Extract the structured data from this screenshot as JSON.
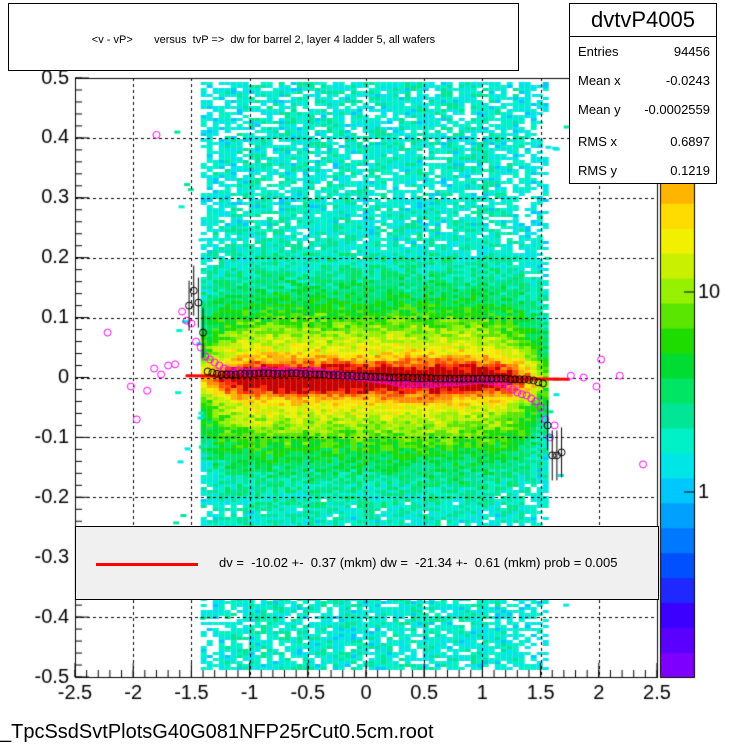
{
  "title": "<v - vP>       versus  tvP =>  dw for barrel 2, layer 4 ladder 5, all wafers",
  "stats": {
    "name": "dvtvP4005",
    "rows": [
      {
        "label": "Entries",
        "value": "94456"
      },
      {
        "label": "Mean x",
        "value": "-0.0243"
      },
      {
        "label": "Mean y",
        "value": "-0.0002559"
      },
      {
        "label": "RMS x",
        "value": "0.6897"
      },
      {
        "label": "RMS y",
        "value": "0.1219"
      }
    ]
  },
  "fit_legend": "dv =  -10.02 +-  0.37 (mkm) dw =  -21.34 +-  0.61 (mkm) prob = 0.005",
  "footer": "_TpcSsdSvtPlotsG40G081NFP25rCut0.5cm.root",
  "colors": {
    "fit_line": "#ff0000",
    "profile_black": "#000000",
    "profile_magenta": "#ff00ff"
  },
  "chart_data": {
    "type": "heatmap",
    "title": "<v - vP>       versus  tvP =>  dw for barrel 2, layer 4 ladder 5, all wafers",
    "xlim": [
      -2.5,
      2.5
    ],
    "ylim": [
      -0.5,
      0.5
    ],
    "x_ticks": [
      "-2.5",
      "-2",
      "-1.5",
      "-1",
      "-0.5",
      "0",
      "0.5",
      "1",
      "1.5",
      "2",
      "2.5"
    ],
    "y_ticks": [
      "-0.5",
      "-0.4",
      "-0.3",
      "-0.2",
      "-0.1",
      "0",
      "0.1",
      "0.2",
      "0.3",
      "0.4",
      "0.5"
    ],
    "z_scale": "log",
    "z_ticks": [
      "1",
      "10"
    ],
    "grid": true,
    "fit_line": {
      "x": [
        -1.55,
        1.75
      ],
      "y": [
        0.003,
        -0.003
      ]
    },
    "profile_black": {
      "x": [
        -1.52,
        -1.48,
        -1.44,
        -1.4,
        -1.36,
        -1.32,
        -1.28,
        -1.24,
        -1.2,
        -1.16,
        -1.12,
        -1.08,
        -1.04,
        -1.0,
        -0.96,
        -0.92,
        -0.88,
        -0.84,
        -0.8,
        -0.76,
        -0.72,
        -0.68,
        -0.64,
        -0.6,
        -0.56,
        -0.52,
        -0.48,
        -0.44,
        -0.4,
        -0.36,
        -0.32,
        -0.28,
        -0.24,
        -0.2,
        -0.16,
        -0.12,
        -0.08,
        -0.04,
        0.0,
        0.04,
        0.08,
        0.12,
        0.16,
        0.2,
        0.24,
        0.28,
        0.32,
        0.36,
        0.4,
        0.44,
        0.48,
        0.52,
        0.56,
        0.6,
        0.64,
        0.68,
        0.72,
        0.76,
        0.8,
        0.84,
        0.88,
        0.92,
        0.96,
        1.0,
        1.04,
        1.08,
        1.12,
        1.16,
        1.2,
        1.24,
        1.28,
        1.32,
        1.36,
        1.4,
        1.44,
        1.48,
        1.52,
        1.56,
        1.6,
        1.64,
        1.68
      ],
      "y": [
        0.12,
        0.145,
        0.125,
        0.075,
        0.01,
        0.008,
        0.006,
        0.005,
        0.005,
        0.005,
        0.005,
        0.006,
        0.006,
        0.006,
        0.006,
        0.007,
        0.007,
        0.007,
        0.006,
        0.006,
        0.006,
        0.006,
        0.007,
        0.007,
        0.006,
        0.006,
        0.005,
        0.005,
        0.005,
        0.005,
        0.004,
        0.004,
        0.004,
        0.003,
        0.003,
        0.003,
        0.002,
        0.002,
        0.002,
        0.001,
        0.001,
        0.001,
        0.001,
        0.0,
        0.0,
        0.0,
        0.0,
        0.0,
        -0.001,
        -0.001,
        -0.001,
        -0.001,
        -0.001,
        -0.002,
        -0.002,
        -0.002,
        -0.002,
        -0.002,
        -0.002,
        -0.002,
        -0.002,
        -0.002,
        -0.002,
        -0.002,
        -0.002,
        -0.002,
        -0.002,
        -0.002,
        -0.002,
        -0.003,
        -0.003,
        -0.003,
        -0.003,
        -0.004,
        -0.005,
        -0.008,
        -0.01,
        -0.08,
        -0.13,
        -0.13,
        -0.125
      ]
    },
    "profile_magenta": {
      "x": [
        -2.22,
        -2.02,
        -1.97,
        -1.88,
        -1.82,
        -1.76,
        -1.7,
        -1.64,
        -1.58,
        -1.54,
        -1.5,
        -1.46,
        -1.42,
        -1.38,
        -1.34,
        -1.3,
        -1.26,
        -1.22,
        -1.18,
        -1.14,
        -1.1,
        -1.06,
        -1.02,
        -0.98,
        -0.94,
        -0.9,
        -0.86,
        -0.82,
        -0.78,
        -0.74,
        -0.7,
        -0.66,
        -0.62,
        -0.58,
        -0.54,
        -0.5,
        -0.46,
        -0.42,
        -0.38,
        -0.34,
        -0.3,
        -0.26,
        -0.22,
        -0.18,
        -0.14,
        -0.1,
        -0.06,
        -0.02,
        0.02,
        0.06,
        0.1,
        0.14,
        0.18,
        0.22,
        0.26,
        0.3,
        0.34,
        0.38,
        0.42,
        0.46,
        0.5,
        0.54,
        0.58,
        0.62,
        0.66,
        0.7,
        0.74,
        0.78,
        0.82,
        0.86,
        0.9,
        0.94,
        0.98,
        1.02,
        1.06,
        1.1,
        1.14,
        1.18,
        1.22,
        1.26,
        1.3,
        1.34,
        1.38,
        1.42,
        1.46,
        1.5,
        1.54,
        1.58,
        1.62,
        1.76,
        1.87,
        1.98,
        2.02,
        2.18,
        2.38,
        -1.8
      ],
      "y": [
        0.075,
        -0.015,
        -0.07,
        -0.022,
        0.015,
        0.005,
        0.02,
        0.022,
        0.11,
        0.095,
        0.09,
        0.06,
        0.05,
        0.035,
        0.03,
        0.025,
        0.02,
        0.015,
        0.012,
        0.01,
        0.012,
        0.01,
        0.008,
        0.009,
        0.01,
        0.012,
        0.011,
        0.01,
        0.009,
        0.01,
        0.012,
        0.011,
        0.01,
        0.009,
        0.008,
        0.01,
        0.011,
        0.01,
        0.008,
        0.007,
        0.006,
        0.005,
        0.004,
        0.003,
        0.002,
        0.002,
        0.001,
        0.0,
        -0.001,
        -0.002,
        -0.003,
        -0.004,
        -0.005,
        -0.006,
        -0.008,
        -0.01,
        -0.012,
        -0.011,
        -0.01,
        -0.009,
        -0.01,
        -0.012,
        -0.011,
        -0.01,
        -0.009,
        -0.008,
        -0.009,
        -0.008,
        -0.007,
        -0.006,
        -0.006,
        -0.005,
        -0.004,
        -0.005,
        -0.006,
        -0.007,
        -0.008,
        -0.01,
        -0.015,
        -0.02,
        -0.025,
        -0.028,
        -0.03,
        -0.035,
        -0.04,
        -0.05,
        -0.07,
        -0.1,
        -0.08,
        0.003,
        0.0,
        -0.015,
        0.03,
        0.003,
        -0.145,
        0.405
      ]
    }
  }
}
